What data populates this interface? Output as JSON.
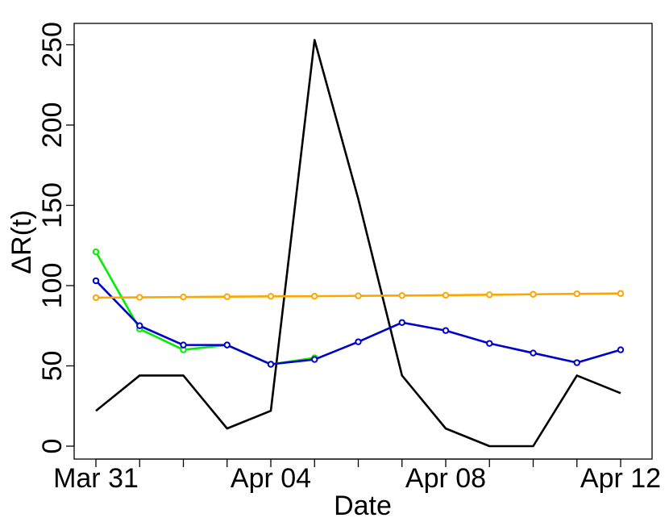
{
  "chart_data": {
    "type": "line",
    "xlabel": "Date",
    "ylabel": "ΔR(t)",
    "x": [
      "Mar 31",
      "Apr 01",
      "Apr 02",
      "Apr 03",
      "Apr 04",
      "Apr 05",
      "Apr 06",
      "Apr 07",
      "Apr 08",
      "Apr 09",
      "Apr 10",
      "Apr 11",
      "Apr 12"
    ],
    "x_tick_labels": [
      "Mar 31",
      "Apr 04",
      "Apr 08",
      "Apr 12"
    ],
    "y_ticks": [
      0,
      50,
      100,
      150,
      200,
      250
    ],
    "ylim": [
      -10,
      265
    ],
    "grid": false,
    "series": [
      {
        "color": "#000000",
        "markers": false,
        "values": [
          22,
          44,
          44,
          11,
          22,
          253,
          154,
          44,
          11,
          0,
          0,
          44,
          33
        ]
      },
      {
        "color": "#00ee00",
        "markers": true,
        "values": [
          121,
          73,
          60,
          63,
          51,
          55,
          null,
          null,
          null,
          null,
          null,
          null,
          null
        ]
      },
      {
        "color": "#0000cc",
        "markers": true,
        "values": [
          103,
          75,
          63,
          63,
          51,
          54,
          65,
          77,
          72,
          64,
          58,
          52,
          60
        ]
      },
      {
        "color": "#ffa500",
        "markers": true,
        "values": [
          92.5,
          92.7,
          92.9,
          93.1,
          93.3,
          93.4,
          93.6,
          93.8,
          94.0,
          94.3,
          94.6,
          94.9,
          95.1
        ]
      }
    ]
  }
}
